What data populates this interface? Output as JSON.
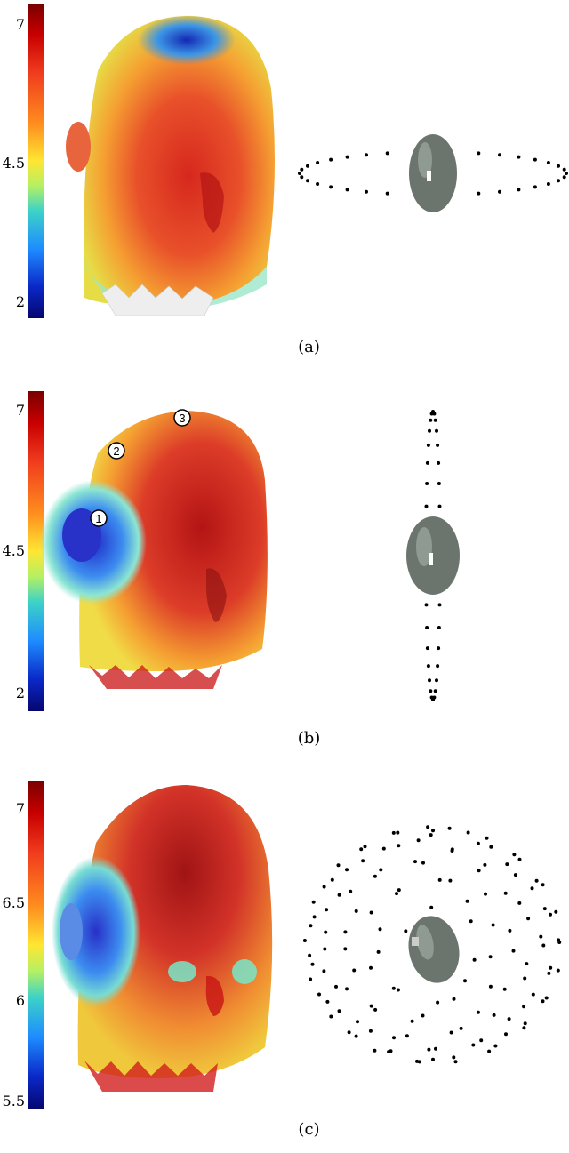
{
  "panels": [
    {
      "id": "a",
      "caption": "(a)",
      "colorbar": {
        "ticks": [
          "7",
          "4.5",
          "2"
        ]
      },
      "markers": [],
      "placement": "horizontal-ring"
    },
    {
      "id": "b",
      "caption": "(b)",
      "colorbar": {
        "ticks": [
          "7",
          "4.5",
          "2"
        ]
      },
      "markers": [
        "1",
        "2",
        "3"
      ],
      "placement": "vertical-ring"
    },
    {
      "id": "c",
      "caption": "(c)",
      "colorbar": {
        "ticks": [
          "7",
          "6.5",
          "6",
          "5.5"
        ]
      },
      "markers": [],
      "placement": "spherical-grid"
    }
  ],
  "colors": {
    "hot": "#c81e1e",
    "warm": "#f08c28",
    "cool": "#1e64dc",
    "head_model": "#6b756e"
  }
}
